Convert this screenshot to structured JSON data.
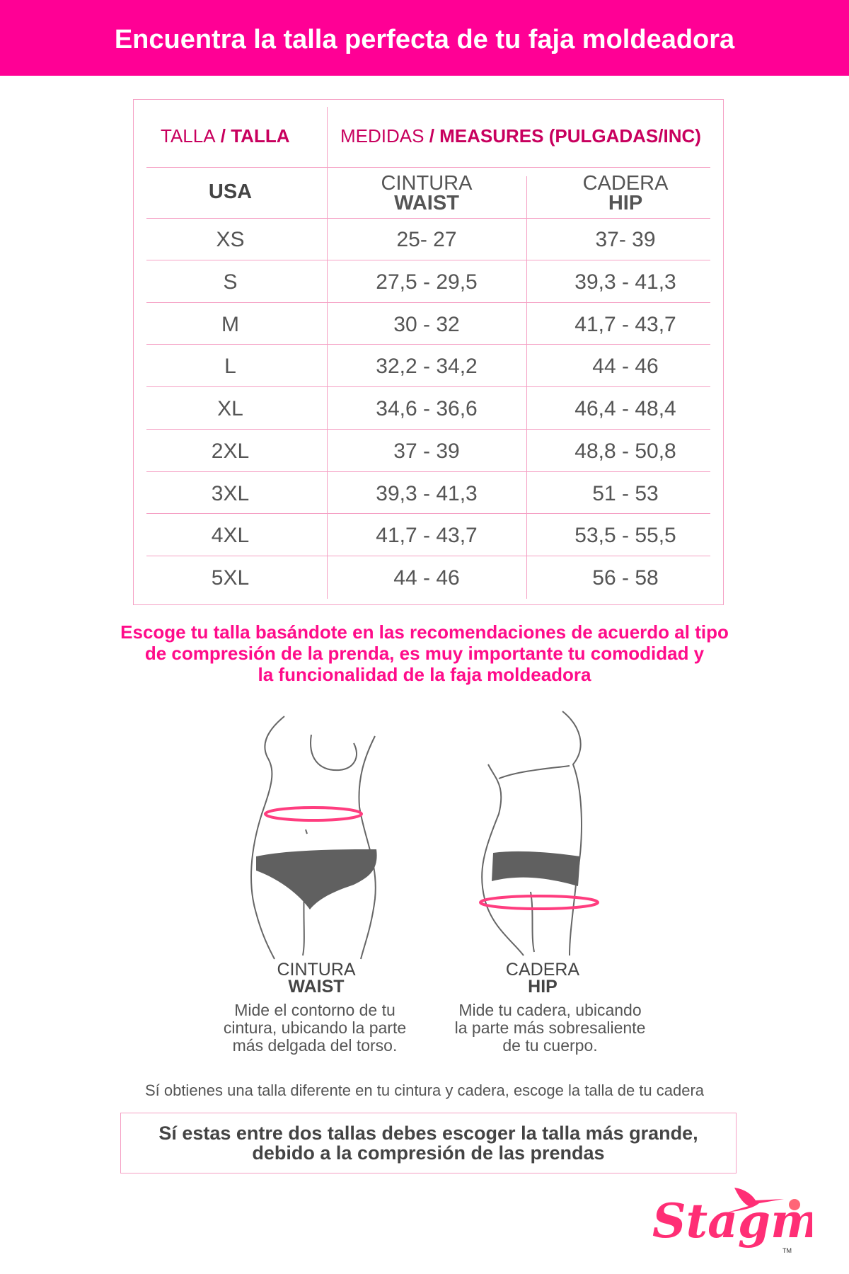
{
  "header": {
    "title": "Encuentra la talla perfecta de tu faja moldeadora"
  },
  "table": {
    "col1_header_light": "TALLA",
    "col1_header_sep": " / ",
    "col1_header_bold": "TALLA",
    "col2_header_light": "MEDIDAS",
    "col2_header_sep": " / ",
    "col2_header_bold": "MEASURES (PULGADAS/INC)",
    "size_system": "USA",
    "waist_es": "CINTURA",
    "waist_en": "WAIST",
    "hip_es": "CADERA",
    "hip_en": "HIP",
    "rows": [
      {
        "size": "XS",
        "waist": "25- 27",
        "hip": "37- 39"
      },
      {
        "size": "S",
        "waist": "27,5 - 29,5",
        "hip": "39,3 - 41,3"
      },
      {
        "size": "M",
        "waist": "30 - 32",
        "hip": "41,7 - 43,7"
      },
      {
        "size": "L",
        "waist": "32,2 - 34,2",
        "hip": "44 - 46"
      },
      {
        "size": "XL",
        "waist": "34,6 - 36,6",
        "hip": "46,4 - 48,4"
      },
      {
        "size": "2XL",
        "waist": "37 - 39",
        "hip": "48,8 - 50,8"
      },
      {
        "size": "3XL",
        "waist": "39,3 - 41,3",
        "hip": "51 - 53"
      },
      {
        "size": "4XL",
        "waist": "41,7 - 43,7",
        "hip": "53,5 - 55,5"
      },
      {
        "size": "5XL",
        "waist": "44 - 46",
        "hip": "56 - 58"
      }
    ]
  },
  "recommendation": [
    "Escoge tu talla basándote en las recomendaciones de acuerdo al tipo",
    "de compresión de la prenda, es muy importante tu comodidad y",
    "la funcionalidad de la faja moldeadora"
  ],
  "figures": {
    "waist": {
      "label_es": "CINTURA",
      "label_en": "WAIST",
      "desc": [
        "Mide el contorno de tu",
        "cintura, ubicando la parte",
        "más delgada del torso."
      ]
    },
    "hip": {
      "label_es": "CADERA",
      "label_en": "HIP",
      "desc": [
        "Mide tu cadera, ubicando",
        "la parte más sobresaliente",
        "de tu cuerpo."
      ]
    }
  },
  "note": "Sí obtienes una talla diferente en tu cintura y cadera, escoge la talla de tu cadera",
  "advice": [
    "Sí estas entre dos tallas debes escoger la talla más grande,",
    "debido a la compresión de las prendas"
  ],
  "logo": {
    "text": "Stagmi",
    "tm": "™"
  },
  "colors": {
    "brand": "#ff0095",
    "accent": "#c8005e",
    "border": "#f5a0c4",
    "measure_line": "#ff3d7f"
  }
}
